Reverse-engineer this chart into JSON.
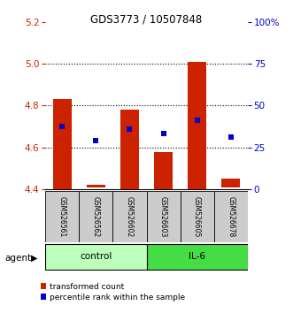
{
  "title": "GDS3773 / 10507848",
  "samples": [
    "GSM526561",
    "GSM526562",
    "GSM526602",
    "GSM526603",
    "GSM526605",
    "GSM526678"
  ],
  "bar_bottoms": [
    4.4,
    4.41,
    4.4,
    4.4,
    4.4,
    4.41
  ],
  "bar_tops": [
    4.83,
    4.42,
    4.78,
    4.58,
    5.01,
    4.45
  ],
  "percentile_values": [
    4.7,
    4.635,
    4.69,
    4.665,
    4.73,
    4.648
  ],
  "ylim_left": [
    4.4,
    5.2
  ],
  "ylim_right": [
    0,
    100
  ],
  "yticks_left": [
    4.4,
    4.6,
    4.8,
    5.0,
    5.2
  ],
  "yticks_right": [
    0,
    25,
    50,
    75,
    100
  ],
  "ytick_labels_right": [
    "0",
    "25",
    "50",
    "75",
    "100%"
  ],
  "bar_color": "#cc2200",
  "percentile_color": "#0000cc",
  "control_color": "#bbffbb",
  "il6_color": "#44dd44",
  "sample_bg_color": "#cccccc",
  "left_axis_color": "#cc2200",
  "right_axis_color": "#0000cc",
  "legend_bar_label": "transformed count",
  "legend_pct_label": "percentile rank within the sample",
  "agent_label": "agent",
  "group_control_label": "control",
  "group_il6_label": "IL-6",
  "n_control": 3,
  "n_il6": 3
}
